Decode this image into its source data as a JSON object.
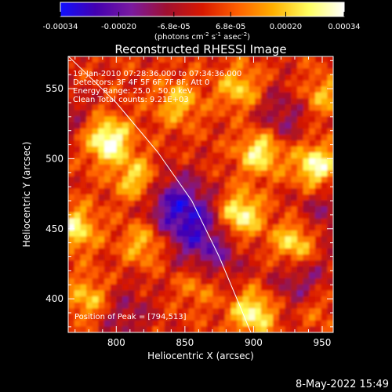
{
  "chart_data": {
    "type": "heatmap",
    "title": "Reconstructed RHESSI Image",
    "xlabel": "Heliocentric X (arcsec)",
    "ylabel": "Heliocentric Y (arcsec)",
    "xlim": [
      765,
      958
    ],
    "ylim": [
      376,
      573
    ],
    "x_ticks": [
      800,
      850,
      900,
      950
    ],
    "y_ticks": [
      400,
      450,
      500,
      550
    ],
    "colorbar": {
      "min": -0.00034,
      "max": 0.00034,
      "tick_values": [
        -0.00034,
        -0.0002,
        -6.8e-05,
        6.8e-05,
        0.0002,
        0.00034
      ],
      "tick_labels": [
        "-0.00034",
        "-0.00020",
        "-6.8e-05",
        "6.8e-05",
        "0.00020",
        "0.00034"
      ],
      "units_prefix": "(photons cm",
      "units_exp1": "-2",
      "units_mid1": " s",
      "units_exp2": "-1",
      "units_mid2": " asec",
      "units_exp3": "-2",
      "units_suffix": ")",
      "colors": [
        "#1010ff",
        "#4400b0",
        "#7a1aa0",
        "#a01030",
        "#d81800",
        "#ff6000",
        "#ffb000",
        "#ffff60",
        "#ffffff"
      ]
    },
    "annotations": [
      "19-Jan-2010 07:28:36.000 to 07:34:36.000",
      "Detectors: 3F 4F 5F 6F 7F 8F, Att 0",
      "Energy Range: 25.0 - 50.0 keV",
      "Clean    Total counts: 9.21E+03"
    ],
    "peak_label": "Position of Peak = [794,513]",
    "peak": [
      794,
      513
    ],
    "limb_curve": [
      [
        760,
        578
      ],
      [
        800,
        540
      ],
      [
        830,
        505
      ],
      [
        855,
        470
      ],
      [
        875,
        430
      ],
      [
        890,
        395
      ],
      [
        898,
        376
      ]
    ],
    "sources": [
      {
        "x": 794,
        "y": 513,
        "value": 0.00034
      },
      {
        "x": 905,
        "y": 505,
        "value": 0.00028
      },
      {
        "x": 890,
        "y": 460,
        "value": 0.0003
      },
      {
        "x": 945,
        "y": 495,
        "value": 0.0003
      },
      {
        "x": 900,
        "y": 390,
        "value": 0.00028
      },
      {
        "x": 930,
        "y": 440,
        "value": 0.00026
      },
      {
        "x": 770,
        "y": 450,
        "value": 0.00024
      },
      {
        "x": 780,
        "y": 400,
        "value": 0.0002
      },
      {
        "x": 890,
        "y": 550,
        "value": 0.0002
      },
      {
        "x": 845,
        "y": 540,
        "value": 0.00018
      },
      {
        "x": 815,
        "y": 485,
        "value": 0.00022
      },
      {
        "x": 820,
        "y": 440,
        "value": 0.00018
      },
      {
        "x": 950,
        "y": 545,
        "value": 0.00016
      },
      {
        "x": 860,
        "y": 410,
        "value": 0.00014
      },
      {
        "x": 945,
        "y": 395,
        "value": 0.00012
      }
    ],
    "negative_regions": [
      {
        "x": 855,
        "y": 455,
        "value": -0.0002
      },
      {
        "x": 840,
        "y": 470,
        "value": -0.00018
      },
      {
        "x": 870,
        "y": 430,
        "value": -0.00016
      },
      {
        "x": 920,
        "y": 530,
        "value": -0.00014
      },
      {
        "x": 950,
        "y": 460,
        "value": -0.00012
      },
      {
        "x": 935,
        "y": 410,
        "value": -0.00016
      },
      {
        "x": 805,
        "y": 390,
        "value": -0.00012
      },
      {
        "x": 760,
        "y": 530,
        "value": -0.0001
      }
    ]
  },
  "timestamp": "8-May-2022 15:49"
}
